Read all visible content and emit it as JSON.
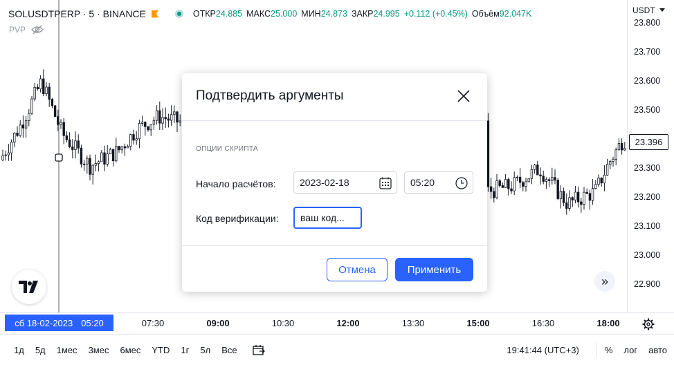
{
  "legend": {
    "symbol": "SOLUSDTPERP · 5 · BINANCE",
    "ohlc": [
      {
        "k": "ОТКР",
        "v": "24.885"
      },
      {
        "k": "МАКС",
        "v": "25.000"
      },
      {
        "k": "МИН",
        "v": "24.873"
      },
      {
        "k": "ЗАКР",
        "v": "24.995"
      },
      {
        "k": "",
        "v": "+0.112 (+0.45%)"
      },
      {
        "k": "Объём",
        "v": "92.047K"
      }
    ],
    "indicator": "PVP"
  },
  "currency": "USDT",
  "price_labels": [
    "23.800",
    "23.700",
    "23.600",
    "23.500",
    "23.396",
    "23.300",
    "23.200",
    "23.100",
    "23.000",
    "22.900"
  ],
  "current_price": "23.396",
  "time_cursor": {
    "date": "сб 18-02-2023",
    "time": "05:20"
  },
  "time_labels": [
    {
      "t": "07:30",
      "bold": false
    },
    {
      "t": "09:00",
      "bold": true
    },
    {
      "t": "10:30",
      "bold": false
    },
    {
      "t": "12:00",
      "bold": true
    },
    {
      "t": "13:30",
      "bold": false
    },
    {
      "t": "15:00",
      "bold": true
    },
    {
      "t": "16:30",
      "bold": false
    },
    {
      "t": "18:00",
      "bold": true
    }
  ],
  "bottombar": {
    "ranges": [
      "1д",
      "5д",
      "1мес",
      "3мес",
      "6мес",
      "YTD",
      "1г",
      "5л",
      "Все"
    ],
    "clock": "19:41:44 (UTC+3)",
    "percent": "%",
    "log": "лог",
    "auto": "авто"
  },
  "dialog": {
    "title": "Подтвердить аргументы",
    "section": "ОПЦИИ СКРИПТА",
    "start_label": "Начало расчётов:",
    "date_value": "2023-02-18",
    "time_value": "05:20",
    "code_label": "Код верификации:",
    "code_value": "ваш код...",
    "cancel": "Отмена",
    "apply": "Применить"
  },
  "colors": {
    "up": "#089981",
    "accent": "#2962ff",
    "candle": "#131722"
  }
}
